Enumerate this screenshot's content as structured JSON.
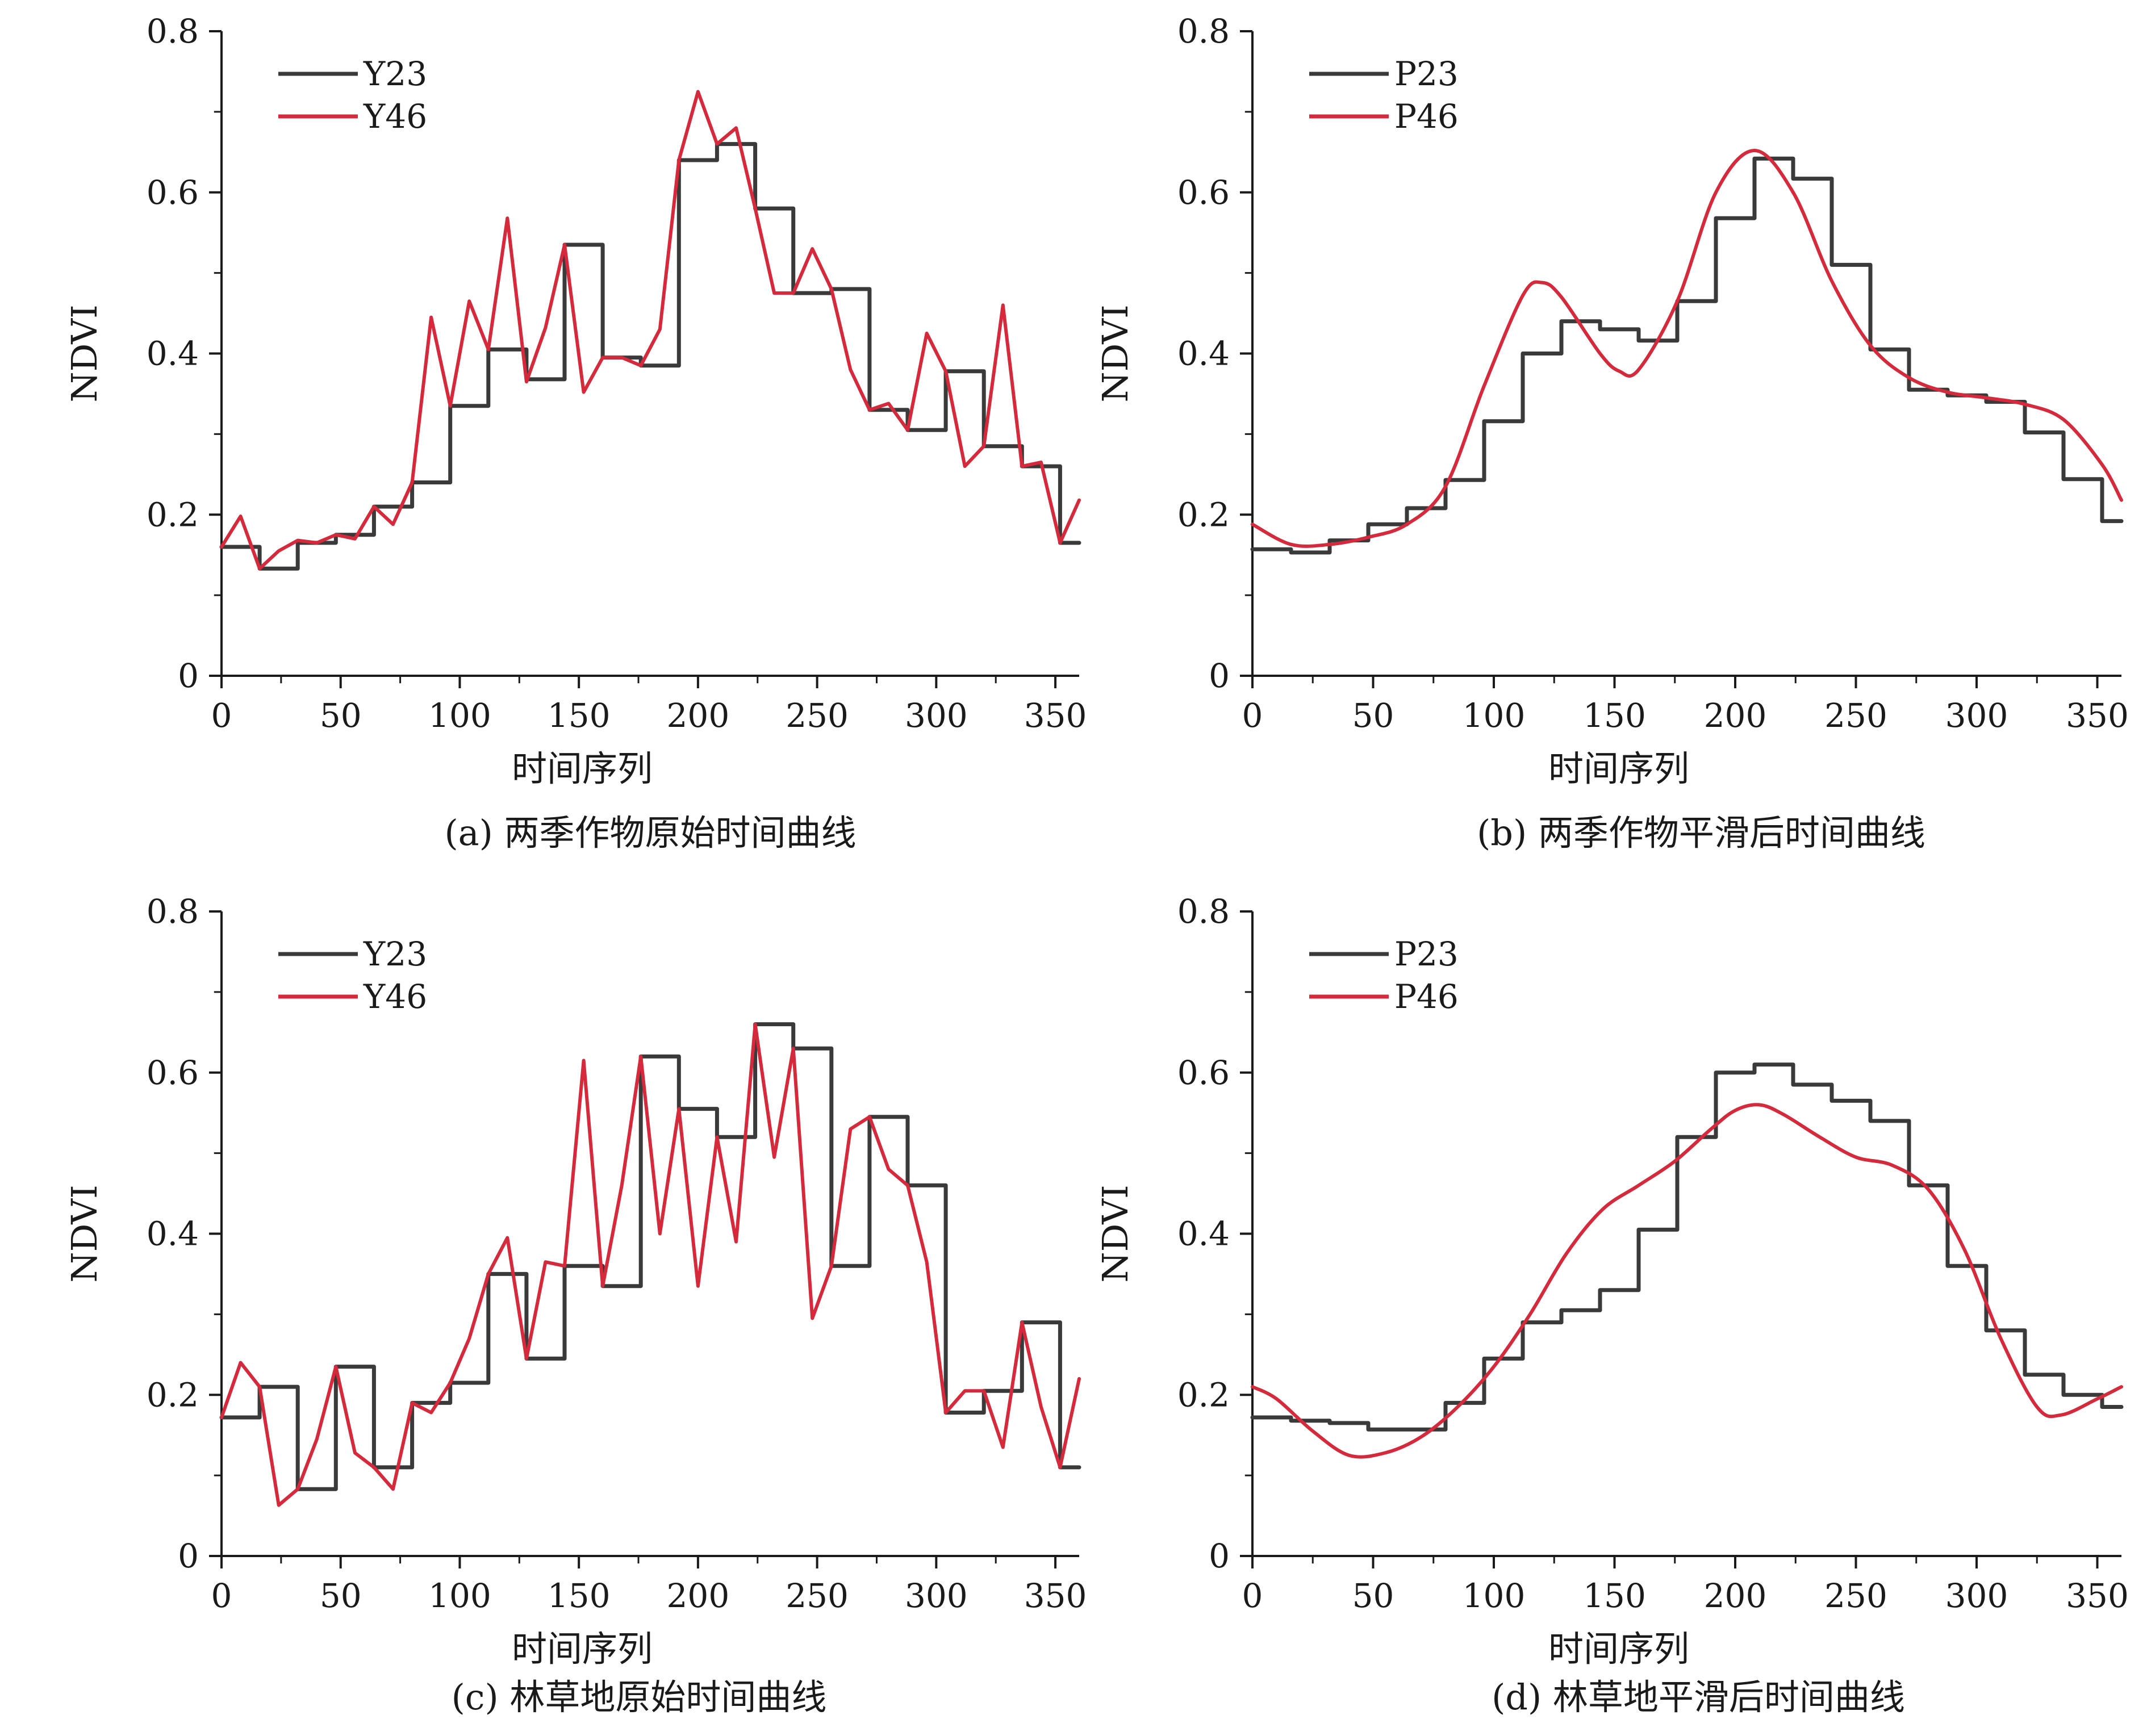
{
  "figure": {
    "panels": [
      {
        "caption": "(a) 两季作物原始时间曲线"
      },
      {
        "caption": "(b) 两季作物平滑后时间曲线"
      },
      {
        "caption": "(c) 林草地原始时间曲线"
      },
      {
        "caption": "(d) 林草地平滑后时间曲线"
      }
    ]
  },
  "chart_data": [
    {
      "type": "line",
      "caption": "(a) 两季作物原始时间曲线",
      "xlabel": "时间序列",
      "ylabel": "NDVI",
      "xlim": [
        0,
        360
      ],
      "ylim": [
        0,
        0.8
      ],
      "xticks": [
        0,
        50,
        100,
        150,
        200,
        250,
        300,
        350
      ],
      "yticks": [
        0,
        0.2,
        0.4,
        0.6,
        0.8
      ],
      "ytick_labels": [
        "0",
        "0.2",
        "0.4",
        "0.6",
        "0.8"
      ],
      "legend": "top-left",
      "series": [
        {
          "name": "Y23",
          "color": "#3a3a3a",
          "step": true,
          "x": [
            0,
            16,
            32,
            48,
            64,
            80,
            96,
            112,
            128,
            144,
            160,
            176,
            192,
            208,
            224,
            240,
            256,
            272,
            288,
            304,
            320,
            336,
            352
          ],
          "values": [
            0.16,
            0.133,
            0.165,
            0.175,
            0.21,
            0.24,
            0.335,
            0.405,
            0.368,
            0.535,
            0.395,
            0.385,
            0.64,
            0.66,
            0.58,
            0.475,
            0.48,
            0.33,
            0.305,
            0.378,
            0.285,
            0.26,
            0.165
          ]
        },
        {
          "name": "Y46",
          "color": "#d42a3c",
          "step": false,
          "x": [
            0,
            8,
            16,
            24,
            32,
            40,
            48,
            56,
            64,
            72,
            80,
            88,
            96,
            104,
            112,
            120,
            128,
            136,
            144,
            152,
            160,
            168,
            176,
            184,
            192,
            200,
            208,
            216,
            224,
            232,
            240,
            248,
            256,
            264,
            272,
            280,
            288,
            296,
            304,
            312,
            320,
            328,
            336,
            344,
            352,
            360
          ],
          "values": [
            0.16,
            0.198,
            0.133,
            0.155,
            0.168,
            0.165,
            0.175,
            0.17,
            0.21,
            0.188,
            0.24,
            0.445,
            0.335,
            0.465,
            0.405,
            0.568,
            0.365,
            0.432,
            0.535,
            0.352,
            0.395,
            0.395,
            0.385,
            0.43,
            0.64,
            0.725,
            0.66,
            0.68,
            0.58,
            0.475,
            0.475,
            0.53,
            0.48,
            0.38,
            0.33,
            0.338,
            0.305,
            0.425,
            0.378,
            0.26,
            0.285,
            0.46,
            0.26,
            0.265,
            0.165,
            0.218
          ]
        }
      ]
    },
    {
      "type": "line",
      "caption": "(b) 两季作物平滑后时间曲线",
      "xlabel": "时间序列",
      "ylabel": "NDVI",
      "xlim": [
        0,
        360
      ],
      "ylim": [
        0,
        0.8
      ],
      "xticks": [
        0,
        50,
        100,
        150,
        200,
        250,
        300,
        350
      ],
      "yticks": [
        0,
        0.2,
        0.4,
        0.6,
        0.8
      ],
      "ytick_labels": [
        "0",
        "0.2",
        "0.4",
        "0.6",
        "0.8"
      ],
      "legend": "top-left",
      "series": [
        {
          "name": "P23",
          "color": "#3a3a3a",
          "step": true,
          "x": [
            0,
            16,
            32,
            48,
            64,
            80,
            96,
            112,
            128,
            144,
            160,
            176,
            192,
            208,
            224,
            240,
            256,
            272,
            288,
            304,
            320,
            336,
            352
          ],
          "values": [
            0.157,
            0.153,
            0.168,
            0.188,
            0.208,
            0.243,
            0.316,
            0.4,
            0.44,
            0.43,
            0.416,
            0.465,
            0.568,
            0.642,
            0.617,
            0.51,
            0.405,
            0.355,
            0.348,
            0.34,
            0.302,
            0.244,
            0.192
          ]
        },
        {
          "name": "P46",
          "color": "#d42a3c",
          "step": false,
          "smooth": true,
          "x": [
            0,
            16,
            32,
            48,
            64,
            80,
            96,
            112,
            120,
            128,
            144,
            152,
            160,
            176,
            192,
            208,
            224,
            240,
            256,
            272,
            288,
            304,
            320,
            336,
            352,
            360
          ],
          "values": [
            0.188,
            0.163,
            0.163,
            0.172,
            0.188,
            0.235,
            0.36,
            0.472,
            0.488,
            0.47,
            0.4,
            0.378,
            0.38,
            0.465,
            0.6,
            0.652,
            0.6,
            0.49,
            0.41,
            0.37,
            0.352,
            0.345,
            0.337,
            0.318,
            0.262,
            0.218
          ]
        }
      ]
    },
    {
      "type": "line",
      "caption": "(c) 林草地原始时间曲线",
      "xlabel": "时间序列",
      "ylabel": "NDVI",
      "xlim": [
        0,
        360
      ],
      "ylim": [
        0,
        0.8
      ],
      "xticks": [
        0,
        50,
        100,
        150,
        200,
        250,
        300,
        350
      ],
      "yticks": [
        0,
        0.2,
        0.4,
        0.6,
        0.8
      ],
      "ytick_labels": [
        "0",
        "0.2",
        "0.4",
        "0.6",
        "0.8"
      ],
      "legend": "top-left",
      "series": [
        {
          "name": "Y23",
          "color": "#3a3a3a",
          "step": true,
          "x": [
            0,
            16,
            32,
            48,
            64,
            80,
            96,
            112,
            128,
            144,
            160,
            176,
            192,
            208,
            224,
            240,
            256,
            272,
            288,
            304,
            320,
            336,
            352
          ],
          "values": [
            0.172,
            0.21,
            0.083,
            0.235,
            0.11,
            0.19,
            0.215,
            0.35,
            0.245,
            0.36,
            0.335,
            0.62,
            0.555,
            0.52,
            0.66,
            0.63,
            0.36,
            0.545,
            0.46,
            0.178,
            0.205,
            0.29,
            0.11
          ]
        },
        {
          "name": "Y46",
          "color": "#d42a3c",
          "step": false,
          "x": [
            0,
            8,
            16,
            24,
            32,
            40,
            48,
            56,
            64,
            72,
            80,
            88,
            96,
            104,
            112,
            120,
            128,
            136,
            144,
            152,
            160,
            168,
            176,
            184,
            192,
            200,
            208,
            216,
            224,
            232,
            240,
            248,
            256,
            264,
            272,
            280,
            288,
            296,
            304,
            312,
            320,
            328,
            336,
            344,
            352,
            360
          ],
          "values": [
            0.172,
            0.24,
            0.21,
            0.063,
            0.083,
            0.145,
            0.235,
            0.128,
            0.11,
            0.083,
            0.19,
            0.178,
            0.215,
            0.27,
            0.35,
            0.395,
            0.245,
            0.365,
            0.36,
            0.615,
            0.335,
            0.46,
            0.62,
            0.4,
            0.555,
            0.335,
            0.52,
            0.39,
            0.66,
            0.495,
            0.63,
            0.295,
            0.36,
            0.53,
            0.545,
            0.48,
            0.46,
            0.365,
            0.178,
            0.205,
            0.205,
            0.135,
            0.29,
            0.185,
            0.11,
            0.22
          ]
        }
      ]
    },
    {
      "type": "line",
      "caption": "(d) 林草地平滑后时间曲线",
      "xlabel": "时间序列",
      "ylabel": "NDVI",
      "xlim": [
        0,
        360
      ],
      "ylim": [
        0,
        0.8
      ],
      "xticks": [
        0,
        50,
        100,
        150,
        200,
        250,
        300,
        350
      ],
      "yticks": [
        0,
        0.2,
        0.4,
        0.6,
        0.8
      ],
      "ytick_labels": [
        "0",
        "0.2",
        "0.4",
        "0.6",
        "0.8"
      ],
      "legend": "top-left",
      "series": [
        {
          "name": "P23",
          "color": "#3a3a3a",
          "step": true,
          "x": [
            0,
            16,
            32,
            48,
            64,
            80,
            96,
            112,
            128,
            144,
            160,
            176,
            192,
            208,
            224,
            240,
            256,
            272,
            288,
            304,
            320,
            336,
            352
          ],
          "values": [
            0.172,
            0.168,
            0.165,
            0.157,
            0.157,
            0.19,
            0.245,
            0.29,
            0.305,
            0.33,
            0.405,
            0.52,
            0.6,
            0.61,
            0.585,
            0.565,
            0.54,
            0.46,
            0.36,
            0.28,
            0.225,
            0.2,
            0.185
          ]
        },
        {
          "name": "P46",
          "color": "#d42a3c",
          "step": false,
          "smooth": true,
          "x": [
            0,
            10,
            25,
            40,
            55,
            70,
            85,
            100,
            115,
            130,
            145,
            160,
            175,
            190,
            200,
            210,
            220,
            235,
            250,
            265,
            280,
            295,
            310,
            325,
            335,
            350,
            360
          ],
          "values": [
            0.21,
            0.195,
            0.155,
            0.125,
            0.128,
            0.148,
            0.185,
            0.235,
            0.3,
            0.375,
            0.43,
            0.46,
            0.49,
            0.53,
            0.553,
            0.56,
            0.548,
            0.52,
            0.495,
            0.485,
            0.455,
            0.38,
            0.27,
            0.185,
            0.175,
            0.195,
            0.21
          ]
        }
      ]
    }
  ]
}
